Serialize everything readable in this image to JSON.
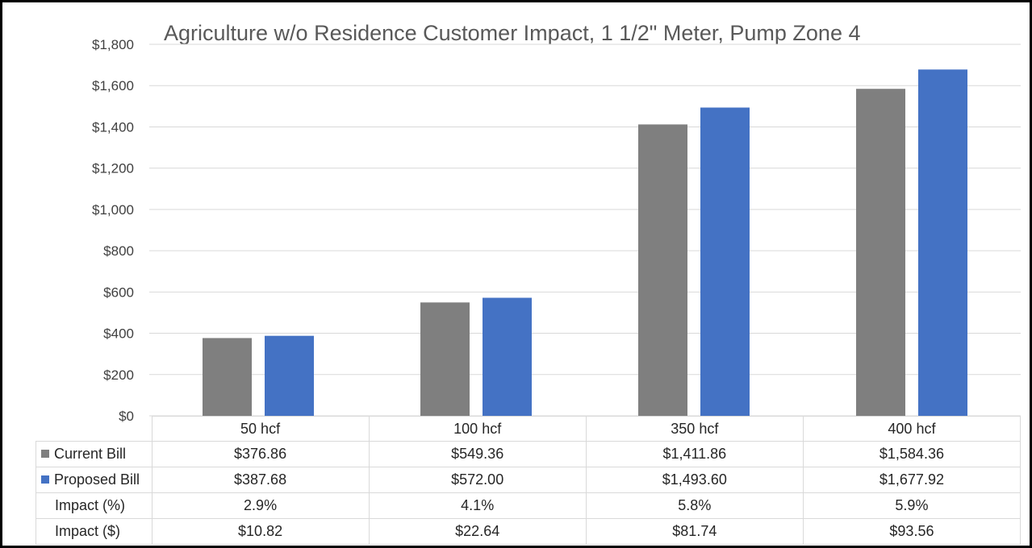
{
  "chart_data": {
    "type": "bar",
    "title": "Agriculture w/o Residence Customer Impact, 1 1/2\" Meter, Pump Zone 4",
    "categories": [
      "50  hcf",
      "100  hcf",
      "350  hcf",
      "400  hcf"
    ],
    "series": [
      {
        "name": "Current Bill",
        "color": "#7f7f7f",
        "values": [
          376.86,
          549.36,
          1411.86,
          1584.36
        ],
        "labels": [
          "$376.86",
          "$549.36",
          "$1,411.86",
          "$1,584.36"
        ]
      },
      {
        "name": "Proposed Bill",
        "color": "#4472c4",
        "values": [
          387.68,
          572.0,
          1493.6,
          1677.92
        ],
        "labels": [
          "$387.68",
          "$572.00",
          "$1,493.60",
          "$1,677.92"
        ]
      }
    ],
    "extra_rows": [
      {
        "name": "Impact (%)",
        "labels": [
          "2.9%",
          "4.1%",
          "5.8%",
          "5.9%"
        ]
      },
      {
        "name": "Impact ($)",
        "labels": [
          "$10.82",
          "$22.64",
          "$81.74",
          "$93.56"
        ]
      }
    ],
    "ylim": [
      0,
      1800
    ],
    "yticks": [
      0,
      200,
      400,
      600,
      800,
      1000,
      1200,
      1400,
      1600,
      1800
    ],
    "ytick_labels": [
      "$0",
      "$200",
      "$400",
      "$600",
      "$800",
      "$1,000",
      "$1,200",
      "$1,400",
      "$1,600",
      "$1,800"
    ],
    "grid": true,
    "legend": "data table"
  }
}
